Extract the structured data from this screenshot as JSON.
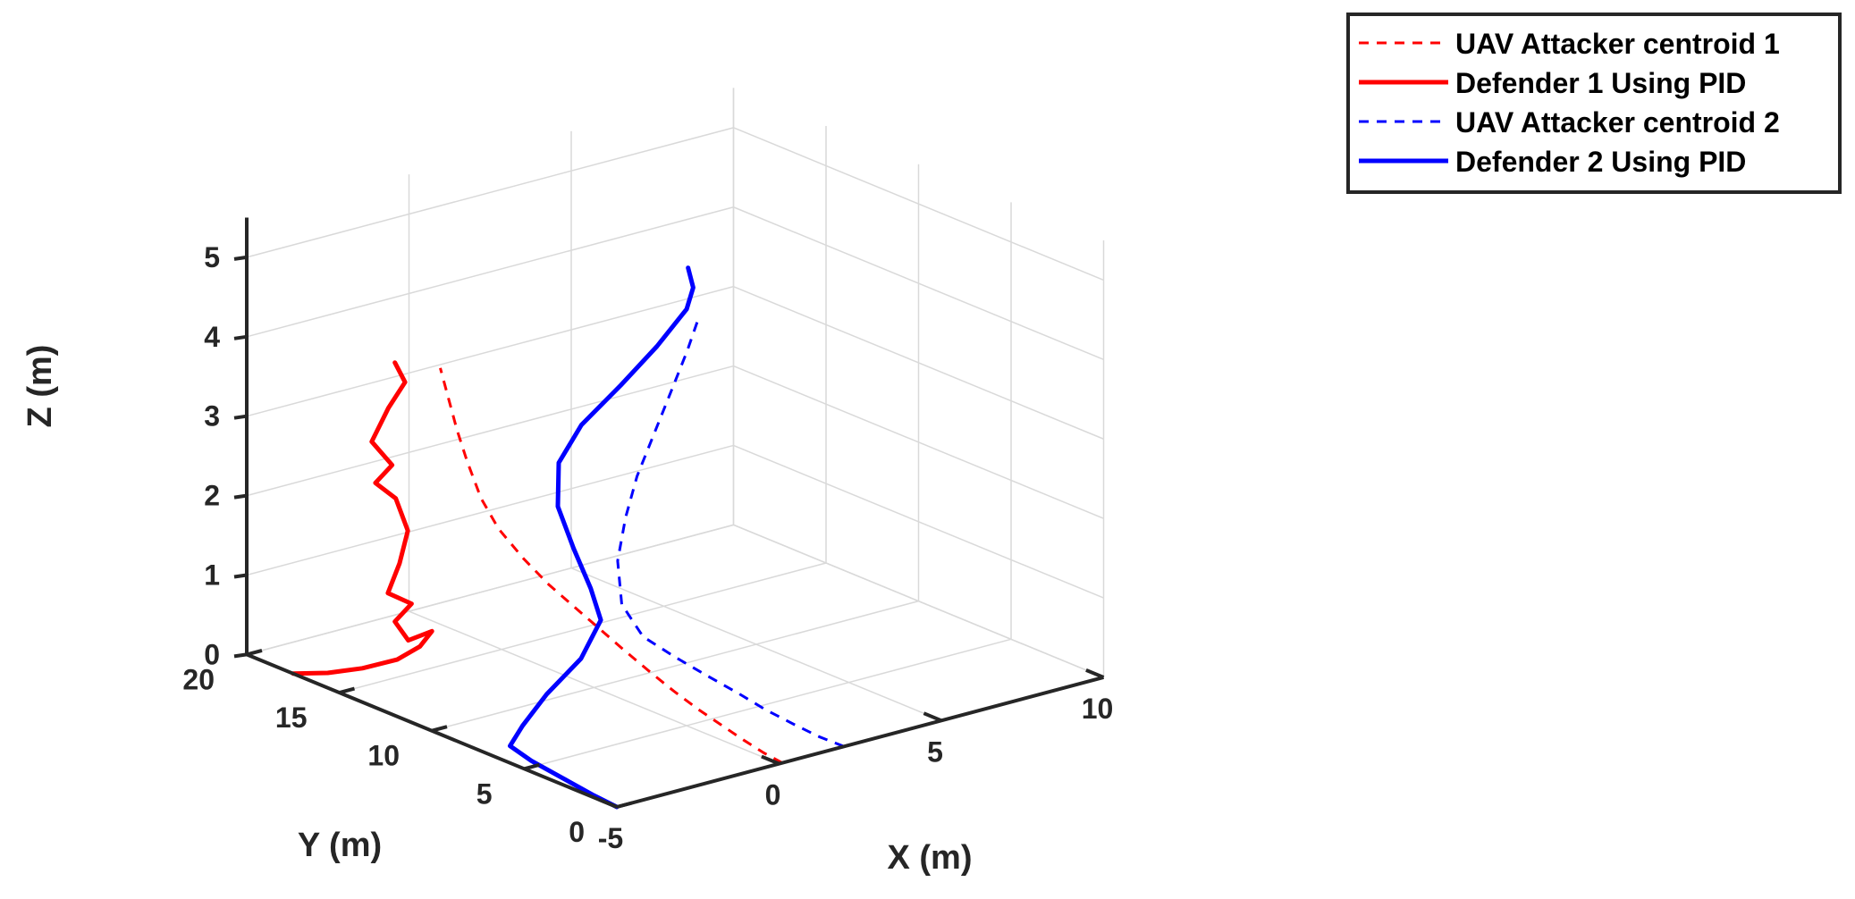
{
  "chart_data": {
    "type": "line",
    "projection": "3d",
    "xlabel": "X (m)",
    "ylabel": "Y (m)",
    "zlabel": "Z (m)",
    "xlim": [
      -5,
      10
    ],
    "ylim": [
      0,
      20
    ],
    "zlim": [
      0,
      5.5
    ],
    "xticks": [
      {
        "value": -5,
        "label": "-5"
      },
      {
        "value": 0,
        "label": "0"
      },
      {
        "value": 5,
        "label": "5"
      },
      {
        "value": 10,
        "label": "10"
      }
    ],
    "yticks": [
      {
        "value": 0,
        "label": "0"
      },
      {
        "value": 5,
        "label": "5"
      },
      {
        "value": 10,
        "label": "10"
      },
      {
        "value": 15,
        "label": "15"
      },
      {
        "value": 20,
        "label": "20"
      }
    ],
    "zticks": [
      {
        "value": 0,
        "label": "0"
      },
      {
        "value": 1,
        "label": "1"
      },
      {
        "value": 2,
        "label": "2"
      },
      {
        "value": 3,
        "label": "3"
      },
      {
        "value": 4,
        "label": "4"
      },
      {
        "value": 5,
        "label": "5"
      }
    ],
    "grid": true,
    "legend_position": "top-right",
    "series": [
      {
        "name": "UAV Attacker centroid 1",
        "color": "#ff0000",
        "style": "dashed",
        "points": [
          [
            0.1,
            0.0,
            0.0
          ],
          [
            0.1,
            1.0,
            0.03
          ],
          [
            0.05,
            2.0,
            0.1
          ],
          [
            -0.05,
            3.0,
            0.2
          ],
          [
            -0.2,
            4.0,
            0.32
          ],
          [
            -0.4,
            5.0,
            0.48
          ],
          [
            -0.6,
            6.0,
            0.66
          ],
          [
            -0.8,
            7.0,
            0.85
          ],
          [
            -1.0,
            8.0,
            1.05
          ],
          [
            -1.2,
            9.0,
            1.25
          ],
          [
            -1.4,
            10.0,
            1.45
          ],
          [
            -1.6,
            11.0,
            1.7
          ],
          [
            -1.8,
            12.0,
            2.0
          ],
          [
            -2.0,
            12.6,
            2.35
          ],
          [
            -2.2,
            13.0,
            2.8
          ],
          [
            -2.4,
            13.2,
            3.2
          ],
          [
            -2.6,
            13.3,
            3.6
          ],
          [
            -2.8,
            13.4,
            4.0
          ]
        ]
      },
      {
        "name": "Defender 1 Using PID",
        "color": "#ff0000",
        "style": "solid",
        "points": [
          [
            -5.0,
            17.5,
            0.0
          ],
          [
            -4.5,
            16.5,
            0.05
          ],
          [
            -4.0,
            15.5,
            0.15
          ],
          [
            -3.5,
            14.5,
            0.3
          ],
          [
            -3.2,
            13.8,
            0.5
          ],
          [
            -3.0,
            13.5,
            0.7
          ],
          [
            -3.5,
            13.9,
            0.6
          ],
          [
            -3.8,
            14.1,
            0.85
          ],
          [
            -3.4,
            13.9,
            1.05
          ],
          [
            -3.9,
            14.3,
            1.2
          ],
          [
            -3.6,
            14.2,
            1.55
          ],
          [
            -3.4,
            14.1,
            1.95
          ],
          [
            -3.6,
            14.4,
            2.35
          ],
          [
            -4.0,
            14.8,
            2.55
          ],
          [
            -3.6,
            14.6,
            2.75
          ],
          [
            -4.0,
            15.0,
            3.05
          ],
          [
            -3.6,
            14.8,
            3.45
          ],
          [
            -3.2,
            14.6,
            3.75
          ],
          [
            -3.4,
            14.8,
            4.0
          ]
        ]
      },
      {
        "name": "UAV Attacker centroid 2",
        "color": "#0000ff",
        "style": "dashed",
        "points": [
          [
            2.0,
            0.0,
            0.0
          ],
          [
            1.8,
            1.0,
            0.05
          ],
          [
            1.6,
            2.0,
            0.13
          ],
          [
            1.3,
            3.0,
            0.25
          ],
          [
            1.0,
            4.0,
            0.4
          ],
          [
            0.6,
            5.0,
            0.57
          ],
          [
            0.2,
            6.0,
            0.75
          ],
          [
            -0.2,
            7.0,
            0.95
          ],
          [
            -0.4,
            7.8,
            1.3
          ],
          [
            -0.3,
            8.2,
            1.8
          ],
          [
            0.0,
            8.3,
            2.3
          ],
          [
            0.3,
            8.2,
            2.8
          ],
          [
            0.7,
            8.0,
            3.3
          ],
          [
            1.1,
            7.8,
            3.8
          ],
          [
            1.5,
            7.6,
            4.3
          ],
          [
            1.8,
            7.5,
            4.7
          ]
        ]
      },
      {
        "name": "Defender 2 Using PID",
        "color": "#0000ff",
        "style": "solid",
        "points": [
          [
            -5.0,
            0.0,
            0.0
          ],
          [
            -4.9,
            1.5,
            0.0
          ],
          [
            -4.7,
            3.5,
            0.0
          ],
          [
            -4.5,
            5.5,
            0.0
          ],
          [
            -4.3,
            7.0,
            0.02
          ],
          [
            -3.8,
            7.2,
            0.2
          ],
          [
            -3.0,
            7.3,
            0.5
          ],
          [
            -2.0,
            7.2,
            0.85
          ],
          [
            -1.5,
            7.0,
            1.3
          ],
          [
            -1.7,
            7.2,
            1.7
          ],
          [
            -2.0,
            7.6,
            2.2
          ],
          [
            -2.2,
            8.1,
            2.7
          ],
          [
            -2.0,
            8.4,
            3.2
          ],
          [
            -1.3,
            8.4,
            3.6
          ],
          [
            -0.2,
            8.2,
            4.0
          ],
          [
            0.8,
            8.0,
            4.4
          ],
          [
            1.6,
            7.8,
            4.8
          ],
          [
            1.8,
            7.8,
            5.05
          ],
          [
            1.7,
            7.9,
            5.3
          ]
        ]
      }
    ]
  }
}
